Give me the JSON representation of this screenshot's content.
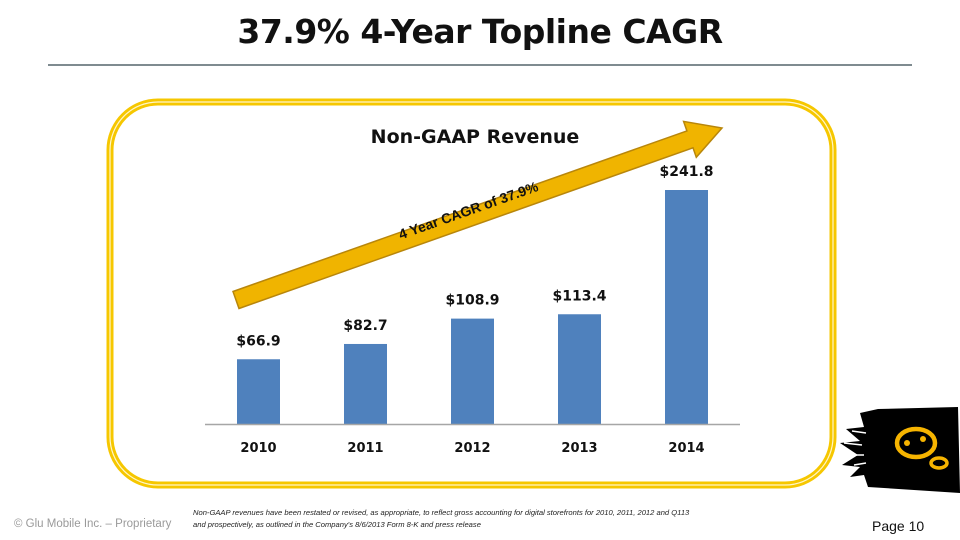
{
  "slide": {
    "title": "37.9% 4-Year Topline CAGR",
    "footer_copyright": "© Glu Mobile Inc. – Proprietary",
    "footnote_line1": "Non-GAAP revenues have been restated or revised, as appropriate, to reflect gross accounting for digital storefronts for 2010, 2011, 2012  and Q113",
    "footnote_line2": "and prospectively,  as outlined in the Company's 8/6/2013 Form 8-K and press release",
    "page_label": "Page 10",
    "logo_icon": "glu-logo-icon"
  },
  "colors": {
    "bar": "#4f81bd",
    "frame": "#f6c700",
    "arrow_fill": "#f0b400",
    "arrow_stroke": "#b8860b",
    "axis": "#a6a6a6",
    "title_rule": "#7f8b90"
  },
  "chart_data": {
    "type": "bar",
    "title": "Non-GAAP Revenue",
    "categories": [
      "2010",
      "2011",
      "2012",
      "2013",
      "2014"
    ],
    "values": [
      66.9,
      82.7,
      108.9,
      113.4,
      241.8
    ],
    "data_labels": [
      "$66.9",
      "$82.7",
      "$108.9",
      "$113.4",
      "$241.8"
    ],
    "xlabel": "",
    "ylabel": "",
    "ylim": [
      0,
      241.8
    ],
    "grid": false,
    "legend": "none",
    "annotation": "4 Year CAGR of 37.9%"
  }
}
